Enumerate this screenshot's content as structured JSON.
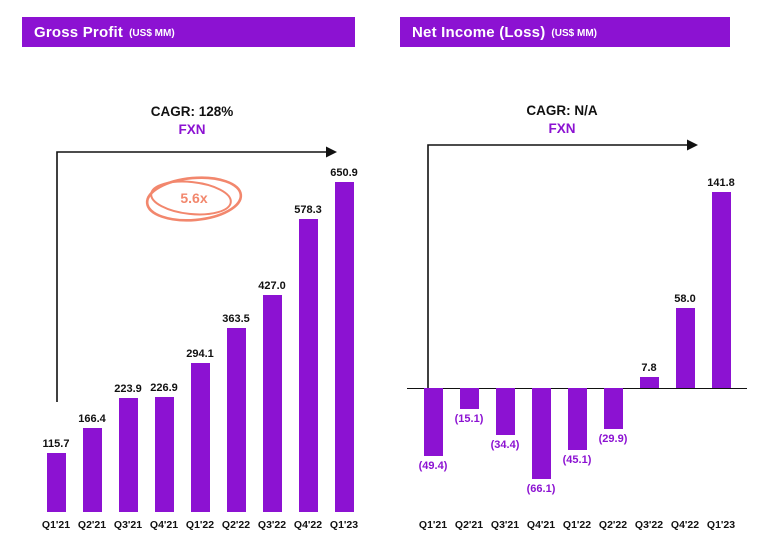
{
  "panels": [
    {
      "title": "Gross Profit",
      "unit": "(US$ MM)",
      "cagr": "CAGR: 128%",
      "fxn": "FXN",
      "annotation": "5.6x"
    },
    {
      "title": "Net Income (Loss)",
      "unit": "(US$ MM)",
      "cagr": "CAGR: N/A",
      "fxn": "FXN"
    }
  ],
  "chart_data": [
    {
      "type": "bar",
      "title": "Gross Profit (US$ MM)",
      "categories": [
        "Q1'21",
        "Q2'21",
        "Q3'21",
        "Q4'21",
        "Q1'22",
        "Q2'22",
        "Q3'22",
        "Q4'22",
        "Q1'23"
      ],
      "values": [
        115.7,
        166.4,
        223.9,
        226.9,
        294.1,
        363.5,
        427.0,
        578.3,
        650.9
      ],
      "data_labels": [
        "115.7",
        "166.4",
        "223.9",
        "226.9",
        "294.1",
        "363.5",
        "427.0",
        "578.3",
        "650.9"
      ],
      "ylim": [
        0,
        680
      ],
      "bar_color": "#8c12d2",
      "pos_label_color": "#111111",
      "neg_label_color": "#8c12d2",
      "baseline_line": false,
      "grid": false,
      "legend": false,
      "annotation_text": "5.6x",
      "cagr": "128%"
    },
    {
      "type": "bar",
      "title": "Net Income (Loss) (US$ MM)",
      "categories": [
        "Q1'21",
        "Q2'21",
        "Q3'21",
        "Q4'21",
        "Q1'22",
        "Q2'22",
        "Q3'22",
        "Q4'22",
        "Q1'23"
      ],
      "values": [
        -49.4,
        -15.1,
        -34.4,
        -66.1,
        -45.1,
        -29.9,
        7.8,
        58.0,
        141.8
      ],
      "data_labels": [
        "(49.4)",
        "(15.1)",
        "(34.4)",
        "(66.1)",
        "(45.1)",
        "(29.9)",
        "7.8",
        "58.0",
        "141.8"
      ],
      "ylim": [
        -90,
        160
      ],
      "bar_color": "#8c12d2",
      "pos_label_color": "#111111",
      "neg_label_color": "#8c12d2",
      "baseline_line": true,
      "grid": false,
      "legend": false,
      "cagr": "N/A"
    }
  ],
  "colors": {
    "purple": "#8c12d2",
    "coral": "#f2876d",
    "text_dark": "#111111"
  }
}
